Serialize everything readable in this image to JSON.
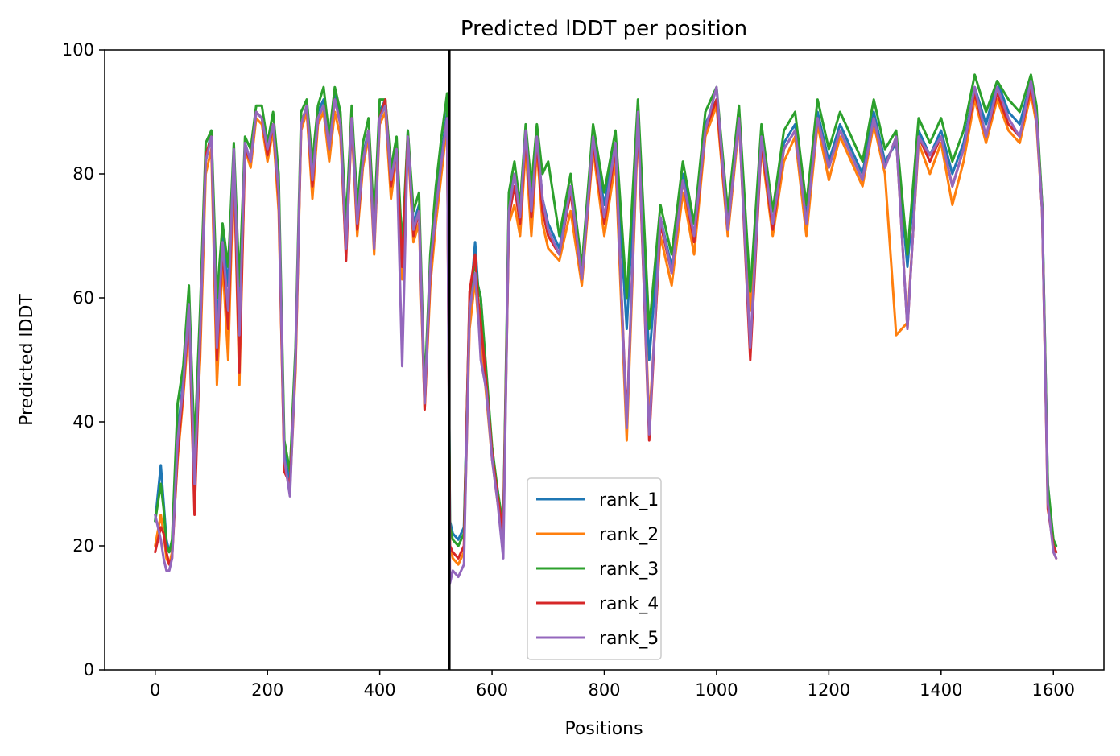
{
  "chart_data": {
    "type": "line",
    "title": "Predicted lDDT per position",
    "xlabel": "Positions",
    "ylabel": "Predicted lDDT",
    "xlim": [
      -90,
      1690
    ],
    "ylim": [
      0,
      100
    ],
    "xticks": [
      0,
      200,
      400,
      600,
      800,
      1000,
      1200,
      1400,
      1600
    ],
    "yticks": [
      0,
      20,
      40,
      60,
      80,
      100
    ],
    "grid": false,
    "legend_position": "lower center",
    "vline": {
      "x": 524,
      "color": "#000000"
    },
    "series": [
      {
        "name": "rank_1",
        "color": "#1f77b4",
        "x": [
          0,
          10,
          15,
          20,
          25,
          30,
          40,
          50,
          60,
          70,
          80,
          90,
          100,
          110,
          120,
          130,
          140,
          150,
          160,
          170,
          180,
          190,
          200,
          210,
          220,
          230,
          240,
          250,
          260,
          270,
          280,
          290,
          300,
          310,
          320,
          330,
          340,
          350,
          360,
          370,
          380,
          390,
          400,
          410,
          420,
          430,
          440,
          450,
          460,
          470,
          480,
          490,
          500,
          510,
          520,
          525,
          530,
          540,
          550,
          560,
          570,
          575,
          580,
          590,
          600,
          610,
          620,
          630,
          640,
          650,
          660,
          670,
          680,
          690,
          700,
          720,
          740,
          760,
          780,
          800,
          820,
          840,
          860,
          880,
          900,
          920,
          940,
          960,
          980,
          1000,
          1020,
          1040,
          1060,
          1080,
          1100,
          1120,
          1140,
          1160,
          1180,
          1200,
          1220,
          1240,
          1260,
          1280,
          1300,
          1320,
          1340,
          1360,
          1380,
          1400,
          1420,
          1440,
          1460,
          1480,
          1500,
          1520,
          1540,
          1560,
          1570,
          1580,
          1590,
          1600,
          1605
        ],
        "y": [
          24,
          33,
          27,
          21,
          19,
          20,
          38,
          47,
          60,
          34,
          55,
          82,
          87,
          55,
          70,
          62,
          84,
          60,
          85,
          82,
          90,
          89,
          84,
          88,
          78,
          35,
          30,
          50,
          88,
          91,
          80,
          90,
          92,
          85,
          93,
          89,
          70,
          90,
          73,
          83,
          87,
          70,
          90,
          92,
          80,
          85,
          66,
          87,
          72,
          75,
          44,
          65,
          75,
          83,
          90,
          24,
          22,
          21,
          23,
          58,
          69,
          62,
          60,
          47,
          35,
          29,
          22,
          75,
          80,
          73,
          87,
          75,
          86,
          76,
          72,
          68,
          78,
          63,
          86,
          75,
          85,
          55,
          90,
          50,
          73,
          65,
          80,
          70,
          88,
          92,
          72,
          90,
          60,
          86,
          72,
          85,
          88,
          73,
          90,
          82,
          88,
          84,
          80,
          90,
          82,
          85,
          65,
          87,
          83,
          87,
          80,
          85,
          94,
          88,
          95,
          90,
          88,
          95,
          90,
          75,
          30,
          20,
          19
        ]
      },
      {
        "name": "rank_2",
        "color": "#ff7f0e",
        "x": [
          0,
          10,
          15,
          20,
          25,
          30,
          40,
          50,
          60,
          70,
          80,
          90,
          100,
          110,
          120,
          130,
          140,
          150,
          160,
          170,
          180,
          190,
          200,
          210,
          220,
          230,
          240,
          250,
          260,
          270,
          280,
          290,
          300,
          310,
          320,
          330,
          340,
          350,
          360,
          370,
          380,
          390,
          400,
          410,
          420,
          430,
          440,
          450,
          460,
          470,
          480,
          490,
          500,
          510,
          520,
          525,
          530,
          540,
          550,
          560,
          570,
          575,
          580,
          590,
          600,
          610,
          620,
          630,
          640,
          650,
          660,
          670,
          680,
          690,
          700,
          720,
          740,
          760,
          780,
          800,
          820,
          840,
          860,
          880,
          900,
          920,
          940,
          960,
          980,
          1000,
          1020,
          1040,
          1060,
          1080,
          1100,
          1120,
          1140,
          1160,
          1180,
          1200,
          1220,
          1240,
          1260,
          1280,
          1300,
          1320,
          1340,
          1360,
          1380,
          1400,
          1420,
          1440,
          1460,
          1480,
          1500,
          1520,
          1540,
          1560,
          1570,
          1580,
          1590,
          1600,
          1605
        ],
        "y": [
          20,
          25,
          22,
          18,
          17,
          19,
          34,
          44,
          56,
          31,
          50,
          80,
          84,
          46,
          66,
          50,
          82,
          46,
          84,
          81,
          89,
          88,
          82,
          87,
          74,
          33,
          29,
          48,
          87,
          90,
          76,
          88,
          90,
          82,
          90,
          86,
          67,
          88,
          70,
          81,
          86,
          67,
          88,
          90,
          76,
          83,
          63,
          85,
          69,
          72,
          42,
          62,
          72,
          80,
          88,
          20,
          18,
          17,
          19,
          55,
          63,
          57,
          54,
          44,
          34,
          27,
          21,
          72,
          75,
          70,
          84,
          70,
          84,
          72,
          68,
          66,
          74,
          62,
          84,
          70,
          82,
          37,
          88,
          40,
          70,
          62,
          77,
          67,
          86,
          91,
          70,
          88,
          58,
          84,
          70,
          82,
          86,
          70,
          88,
          79,
          86,
          82,
          78,
          88,
          80,
          54,
          56,
          85,
          80,
          85,
          75,
          82,
          92,
          85,
          92,
          87,
          85,
          93,
          88,
          74,
          28,
          19,
          18
        ]
      },
      {
        "name": "rank_3",
        "color": "#2ca02c",
        "x": [
          0,
          10,
          15,
          20,
          25,
          30,
          40,
          50,
          60,
          70,
          80,
          90,
          100,
          110,
          120,
          130,
          140,
          150,
          160,
          170,
          180,
          190,
          200,
          210,
          220,
          230,
          240,
          250,
          260,
          270,
          280,
          290,
          300,
          310,
          320,
          330,
          340,
          350,
          360,
          370,
          380,
          390,
          400,
          410,
          420,
          430,
          440,
          450,
          460,
          470,
          480,
          490,
          500,
          510,
          520,
          525,
          530,
          540,
          550,
          560,
          570,
          575,
          580,
          590,
          600,
          610,
          620,
          630,
          640,
          650,
          660,
          670,
          680,
          690,
          700,
          720,
          740,
          760,
          780,
          800,
          820,
          840,
          860,
          880,
          900,
          920,
          940,
          960,
          980,
          1000,
          1020,
          1040,
          1060,
          1080,
          1100,
          1120,
          1140,
          1160,
          1180,
          1200,
          1220,
          1240,
          1260,
          1280,
          1300,
          1320,
          1340,
          1360,
          1380,
          1400,
          1420,
          1440,
          1460,
          1480,
          1500,
          1520,
          1540,
          1560,
          1570,
          1580,
          1590,
          1600,
          1605
        ],
        "y": [
          24,
          30,
          26,
          20,
          19,
          21,
          43,
          49,
          62,
          36,
          58,
          85,
          87,
          60,
          72,
          65,
          85,
          62,
          86,
          84,
          91,
          91,
          85,
          90,
          80,
          37,
          32,
          52,
          90,
          92,
          82,
          91,
          94,
          86,
          94,
          90,
          72,
          91,
          75,
          85,
          89,
          72,
          92,
          92,
          81,
          86,
          68,
          87,
          74,
          77,
          45,
          67,
          78,
          86,
          93,
          23,
          21,
          20,
          22,
          60,
          66,
          62,
          60,
          48,
          36,
          29,
          23,
          77,
          82,
          75,
          88,
          78,
          88,
          80,
          82,
          70,
          80,
          65,
          88,
          77,
          87,
          60,
          92,
          55,
          75,
          67,
          82,
          72,
          90,
          94,
          74,
          91,
          61,
          88,
          74,
          87,
          90,
          75,
          92,
          84,
          90,
          86,
          82,
          92,
          84,
          87,
          67,
          89,
          85,
          89,
          82,
          87,
          96,
          90,
          95,
          92,
          90,
          96,
          91,
          75,
          30,
          21,
          20
        ]
      },
      {
        "name": "rank_4",
        "color": "#d62728",
        "x": [
          0,
          10,
          15,
          20,
          25,
          30,
          40,
          50,
          60,
          70,
          80,
          90,
          100,
          110,
          120,
          130,
          140,
          150,
          160,
          170,
          180,
          190,
          200,
          210,
          220,
          230,
          240,
          250,
          260,
          270,
          280,
          290,
          300,
          310,
          320,
          330,
          340,
          350,
          360,
          370,
          380,
          390,
          400,
          410,
          420,
          430,
          440,
          450,
          460,
          470,
          480,
          490,
          500,
          510,
          520,
          525,
          530,
          540,
          550,
          560,
          570,
          575,
          580,
          590,
          600,
          610,
          620,
          630,
          640,
          650,
          660,
          670,
          680,
          690,
          700,
          720,
          740,
          760,
          780,
          800,
          820,
          840,
          860,
          880,
          900,
          920,
          940,
          960,
          980,
          1000,
          1020,
          1040,
          1060,
          1080,
          1100,
          1120,
          1140,
          1160,
          1180,
          1200,
          1220,
          1240,
          1260,
          1280,
          1300,
          1320,
          1340,
          1360,
          1380,
          1400,
          1420,
          1440,
          1460,
          1480,
          1500,
          1520,
          1540,
          1560,
          1570,
          1580,
          1590,
          1600,
          1605
        ],
        "y": [
          19,
          23,
          22,
          19,
          17,
          18,
          35,
          45,
          58,
          25,
          53,
          83,
          86,
          50,
          68,
          55,
          83,
          48,
          84,
          82,
          90,
          89,
          83,
          88,
          76,
          32,
          30,
          49,
          88,
          91,
          78,
          89,
          91,
          84,
          92,
          88,
          66,
          89,
          71,
          82,
          87,
          68,
          89,
          92,
          78,
          84,
          65,
          86,
          70,
          74,
          42,
          64,
          74,
          82,
          89,
          20,
          19,
          18,
          20,
          61,
          67,
          60,
          56,
          46,
          35,
          28,
          22,
          73,
          78,
          72,
          86,
          73,
          85,
          74,
          70,
          67,
          77,
          63,
          85,
          72,
          84,
          40,
          89,
          37,
          72,
          64,
          79,
          69,
          87,
          92,
          71,
          89,
          50,
          85,
          71,
          84,
          87,
          72,
          89,
          81,
          87,
          83,
          79,
          89,
          81,
          86,
          55,
          86,
          82,
          86,
          78,
          84,
          93,
          86,
          93,
          88,
          86,
          94,
          89,
          74,
          26,
          20,
          19
        ]
      },
      {
        "name": "rank_5",
        "color": "#9467bd",
        "x": [
          0,
          10,
          15,
          20,
          25,
          30,
          40,
          50,
          60,
          70,
          80,
          90,
          100,
          110,
          120,
          130,
          140,
          150,
          160,
          170,
          180,
          190,
          200,
          210,
          220,
          230,
          240,
          250,
          260,
          270,
          280,
          290,
          300,
          310,
          320,
          330,
          340,
          350,
          360,
          370,
          380,
          390,
          400,
          410,
          420,
          430,
          440,
          450,
          460,
          470,
          480,
          490,
          500,
          510,
          520,
          525,
          530,
          540,
          550,
          560,
          570,
          575,
          580,
          590,
          600,
          610,
          620,
          630,
          640,
          650,
          660,
          670,
          680,
          690,
          700,
          720,
          740,
          760,
          780,
          800,
          820,
          840,
          860,
          880,
          900,
          920,
          940,
          960,
          980,
          1000,
          1020,
          1040,
          1060,
          1080,
          1100,
          1120,
          1140,
          1160,
          1180,
          1200,
          1220,
          1240,
          1260,
          1280,
          1300,
          1320,
          1340,
          1360,
          1380,
          1400,
          1420,
          1440,
          1460,
          1480,
          1500,
          1520,
          1540,
          1560,
          1570,
          1580,
          1590,
          1600,
          1605
        ],
        "y": [
          25,
          21,
          18,
          16,
          16,
          18,
          37,
          46,
          59,
          30,
          54,
          82,
          86,
          52,
          69,
          58,
          84,
          54,
          85,
          82,
          90,
          89,
          84,
          88,
          77,
          34,
          28,
          50,
          88,
          91,
          79,
          89,
          91,
          84,
          92,
          88,
          68,
          89,
          72,
          82,
          87,
          68,
          89,
          91,
          79,
          84,
          49,
          86,
          71,
          74,
          43,
          65,
          74,
          82,
          89,
          14,
          16,
          15,
          17,
          58,
          64,
          58,
          50,
          45,
          34,
          27,
          18,
          74,
          80,
          73,
          87,
          74,
          86,
          76,
          71,
          67,
          78,
          63,
          86,
          73,
          85,
          39,
          90,
          38,
          73,
          64,
          79,
          70,
          87,
          94,
          71,
          89,
          52,
          86,
          72,
          84,
          87,
          72,
          89,
          81,
          87,
          83,
          79,
          89,
          81,
          86,
          55,
          86,
          83,
          86,
          78,
          84,
          94,
          86,
          94,
          89,
          86,
          95,
          89,
          74,
          27,
          19,
          18
        ]
      }
    ]
  }
}
